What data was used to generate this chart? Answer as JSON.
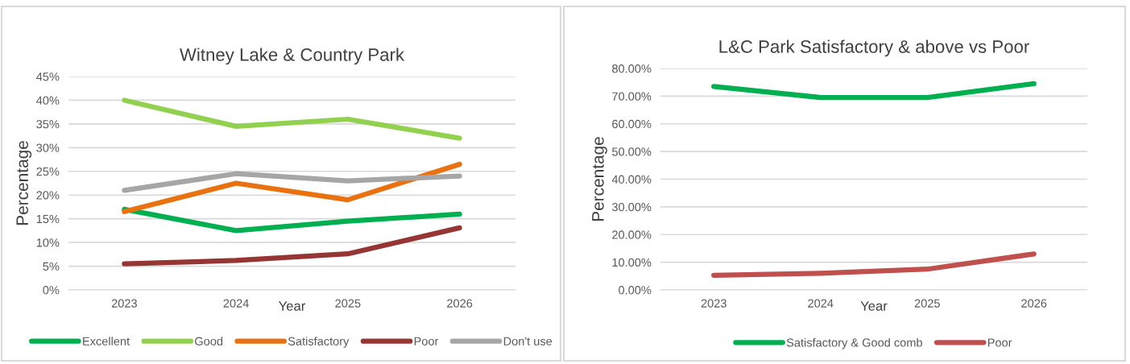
{
  "chart_data": [
    {
      "type": "line",
      "title": "Witney Lake & Country Park",
      "xlabel": "Year",
      "ylabel": "Percentage",
      "categories": [
        "2023",
        "2024",
        "2025",
        "2026"
      ],
      "series": [
        {
          "name": "Excellent",
          "color": "#00b050",
          "values": [
            17,
            12.5,
            14.5,
            16
          ]
        },
        {
          "name": "Good",
          "color": "#92d050",
          "values": [
            40,
            34.5,
            36,
            32
          ]
        },
        {
          "name": "Satisfactory",
          "color": "#e97110",
          "values": [
            16.5,
            22.5,
            19,
            26.5
          ]
        },
        {
          "name": "Poor",
          "color": "#963634",
          "values": [
            5.5,
            6.2,
            7.6,
            13.1
          ]
        },
        {
          "name": "Don't use",
          "color": "#a6a6a6",
          "values": [
            21,
            24.5,
            23,
            24
          ]
        }
      ],
      "ylim": [
        0,
        45
      ],
      "yticks": [
        {
          "value": 0,
          "label": "0%"
        },
        {
          "value": 5,
          "label": "5%"
        },
        {
          "value": 10,
          "label": "10%"
        },
        {
          "value": 15,
          "label": "15%"
        },
        {
          "value": 20,
          "label": "20%"
        },
        {
          "value": 25,
          "label": "25%"
        },
        {
          "value": 30,
          "label": "30%"
        },
        {
          "value": 35,
          "label": "35%"
        },
        {
          "value": 40,
          "label": "40%"
        },
        {
          "value": 45,
          "label": "45%"
        }
      ],
      "grid": "y",
      "legend": "bottom",
      "marker": "none",
      "line_style": "solid"
    },
    {
      "type": "line",
      "title": "L&C Park Satisfactory & above vs Poor",
      "xlabel": "Year",
      "ylabel": "Percentage",
      "categories": [
        "2023",
        "2024",
        "2025",
        "2026"
      ],
      "series": [
        {
          "name": "Satisfactory & Good comb",
          "color": "#00b050",
          "values": [
            73.5,
            69.5,
            69.5,
            74.5
          ]
        },
        {
          "name": "Poor",
          "color": "#c0504d",
          "values": [
            5.3,
            6.0,
            7.5,
            13
          ]
        }
      ],
      "ylim": [
        0,
        80
      ],
      "yticks": [
        {
          "value": 0,
          "label": "0.00%"
        },
        {
          "value": 10,
          "label": "10.00%"
        },
        {
          "value": 20,
          "label": "20.00%"
        },
        {
          "value": 30,
          "label": "30.00%"
        },
        {
          "value": 40,
          "label": "40.00%"
        },
        {
          "value": 50,
          "label": "50.00%"
        },
        {
          "value": 60,
          "label": "60.00%"
        },
        {
          "value": 70,
          "label": "70.00%"
        },
        {
          "value": 80,
          "label": "80.00%"
        }
      ],
      "grid": "y",
      "legend": "bottom",
      "marker": "none",
      "line_style": "solid"
    }
  ]
}
